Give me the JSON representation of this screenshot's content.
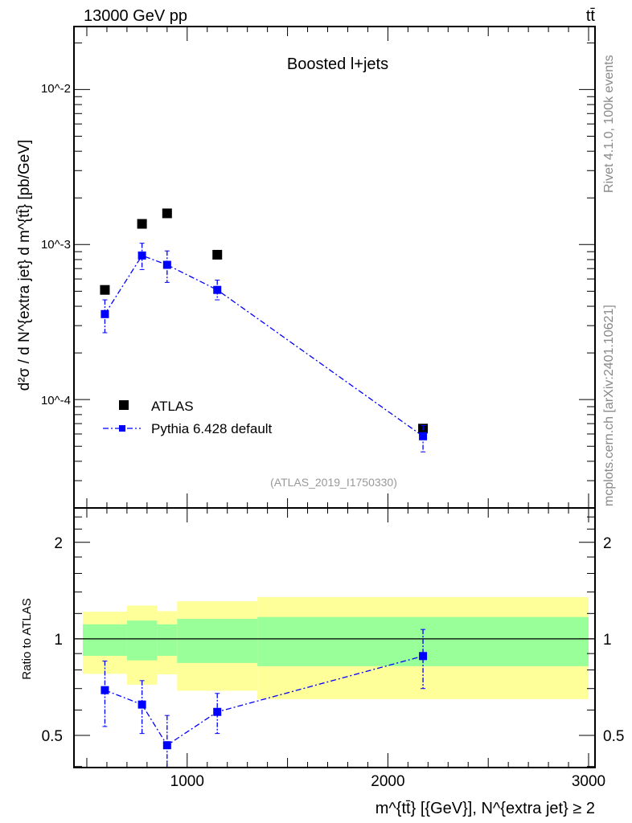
{
  "header": {
    "energy_label": "13000 GeV pp",
    "process_label": "tt̄",
    "plot_title": "Boosted l+jets",
    "side_info": "Rivet 4.1.0,  100k events",
    "side_source": "mcplots.cern.ch [arXiv:2401.10621]",
    "analysis_id": "(ATLAS_2019_I1750330)"
  },
  "colors": {
    "data": "#000000",
    "mc": "#0000ff",
    "band_inner": "#99ff99",
    "band_outer": "#ffff99"
  },
  "chart_data": [
    {
      "type": "scatter",
      "panel": "main",
      "ylabel": "d²σ / d N^{extra jet} d m^{tt̄} [pb/GeV]",
      "yscale": "log",
      "ylim": [
        2e-05,
        0.0255
      ],
      "xlim": [
        436,
        3032
      ],
      "ytick_labels": [
        "10^-2",
        "10^-3",
        "10^-4"
      ],
      "bin_edges": [
        480,
        700,
        850,
        950,
        1350,
        3000
      ],
      "series": [
        {
          "name": "ATLAS",
          "x": [
            590,
            775,
            900,
            1150,
            2175
          ],
          "y": [
            0.00051,
            0.00136,
            0.00159,
            0.00086,
            6.5e-05
          ]
        },
        {
          "name": "Pythia 6.428 default",
          "x": [
            590,
            775,
            900,
            1150,
            2175
          ],
          "y": [
            0.000356,
            0.00085,
            0.00074,
            0.00051,
            5.8e-05
          ],
          "y_err_up": [
            0.00044,
            0.00102,
            0.00091,
            0.00059,
            6.8e-05
          ],
          "y_err_down": [
            0.00027,
            0.00069,
            0.00057,
            0.00044,
            4.6e-05
          ]
        }
      ],
      "legend": {
        "position": "bottom-left",
        "entries": [
          "ATLAS",
          "Pythia 6.428 default"
        ]
      }
    },
    {
      "type": "scatter",
      "panel": "ratio",
      "ylabel": "Ratio to ATLAS",
      "xlabel": "m^{tt̄} [{GeV}], N^{extra jet} ≥ 2",
      "yscale": "log",
      "ylim": [
        0.397,
        2.56
      ],
      "xlim": [
        436,
        3032
      ],
      "xtick_labels": [
        "1000",
        "2000",
        "3000"
      ],
      "xticks": [
        1000,
        2000,
        3000
      ],
      "ytick_labels": [
        "0.5",
        "1",
        "2"
      ],
      "yticks": [
        0.5,
        1,
        2
      ],
      "bands": {
        "inner_up": [
          1.11,
          1.14,
          1.11,
          1.155,
          1.17
        ],
        "inner_down": [
          0.885,
          0.857,
          0.885,
          0.841,
          0.822
        ],
        "outer_up": [
          1.215,
          1.27,
          1.22,
          1.31,
          1.35
        ],
        "outer_down": [
          0.778,
          0.72,
          0.775,
          0.689,
          0.649
        ]
      },
      "series": [
        {
          "name": "Pythia 6.428 default",
          "x": [
            590,
            775,
            900,
            1150,
            2175
          ],
          "y": [
            0.692,
            0.624,
            0.466,
            0.592,
            0.884
          ],
          "y_err_up": [
            0.853,
            0.741,
            0.577,
            0.676,
            1.07
          ],
          "y_err_down": [
            0.533,
            0.507,
            0.39,
            0.507,
            0.7
          ]
        }
      ]
    }
  ]
}
